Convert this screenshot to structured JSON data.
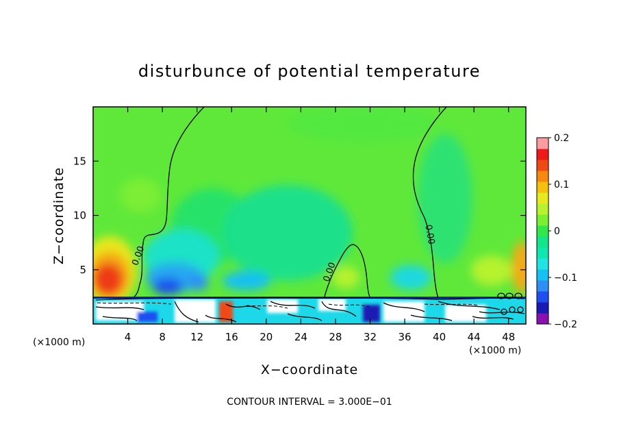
{
  "chart_data": {
    "type": "heatmap",
    "title": "disturbunce of potential temperature",
    "xlabel": "X−coordinate",
    "ylabel": "Z−coordinate",
    "x_unit_label": "(×1000 m)",
    "xlim": [
      0,
      50
    ],
    "ylim": [
      0,
      20
    ],
    "x_ticks": [
      4,
      8,
      12,
      16,
      20,
      24,
      28,
      32,
      36,
      40,
      44,
      48
    ],
    "y_ticks": [
      5,
      10,
      15
    ],
    "contour_interval_text": "CONTOUR INTERVAL = 3.000E−01",
    "contour_labels": [
      {
        "text": "0.00",
        "x": 5.5,
        "y": 6.2
      },
      {
        "text": "0.00",
        "x": 27.6,
        "y": 4.7
      },
      {
        "text": "0.00",
        "x": 38.6,
        "y": 8.2
      }
    ],
    "colorbar": {
      "levels": [
        -0.2,
        -0.175,
        -0.15,
        -0.125,
        -0.1,
        -0.075,
        -0.05,
        -0.025,
        0,
        0.025,
        0.05,
        0.075,
        0.1,
        0.125,
        0.15,
        0.175,
        0.2
      ],
      "colors": [
        "#8b10b0",
        "#1a1ab4",
        "#1f4ff0",
        "#2f8ef5",
        "#16c0f2",
        "#20e4e4",
        "#10e7b0",
        "#12e58a",
        "#30e84a",
        "#7af030",
        "#b6f22e",
        "#e8e81e",
        "#f6c010",
        "#f58a0e",
        "#f04a14",
        "#ee1a1a",
        "#fa9ca0"
      ],
      "tick_labels": [
        "0.2",
        "0.1",
        "0",
        "−0.1",
        "−0.2"
      ],
      "tick_values": [
        0.2,
        0.1,
        0,
        -0.1,
        -0.2
      ]
    },
    "grid": false
  }
}
